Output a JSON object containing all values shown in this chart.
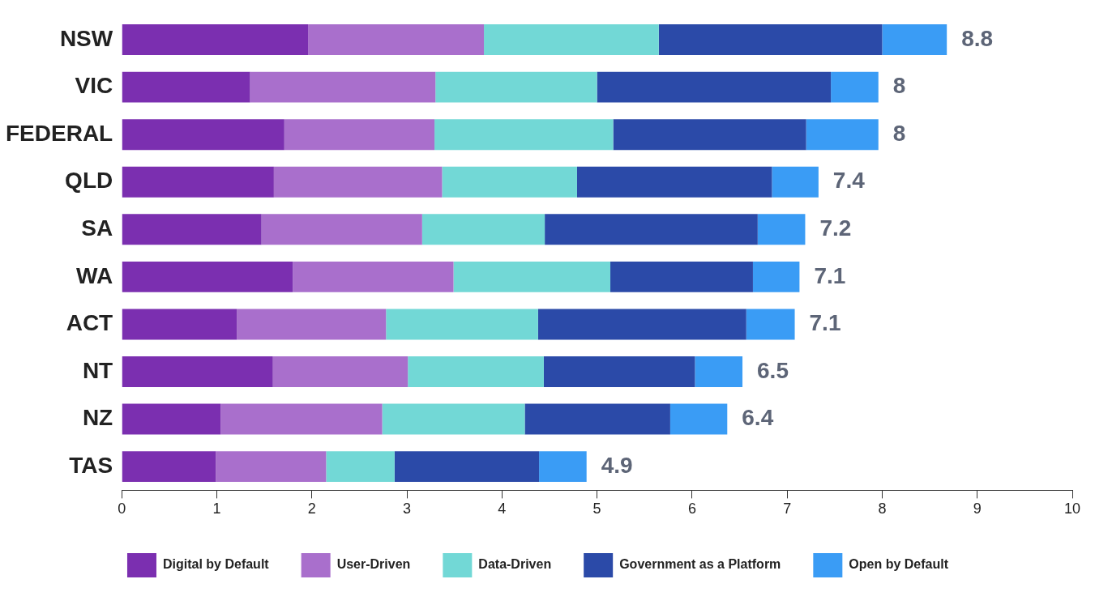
{
  "chart_data": {
    "type": "bar",
    "orientation": "horizontal",
    "stacked": true,
    "grid": false,
    "legend": "bottom",
    "categories": [
      "NSW",
      "VIC",
      "FEDERAL",
      "QLD",
      "SA",
      "WA",
      "ACT",
      "NT",
      "NZ",
      "TAS"
    ],
    "xlim": [
      0,
      10
    ],
    "xticks": [
      0,
      1,
      2,
      3,
      4,
      5,
      6,
      7,
      8,
      9,
      10
    ],
    "series": [
      {
        "name": "Digital by Default",
        "color": "#7b2fb0",
        "values": [
          1.96,
          1.35,
          1.71,
          1.6,
          1.47,
          1.8,
          1.21,
          1.59,
          1.04,
          0.99
        ]
      },
      {
        "name": "User-Driven",
        "color": "#a96fcc",
        "values": [
          1.85,
          1.95,
          1.58,
          1.77,
          1.69,
          1.69,
          1.57,
          1.42,
          1.7,
          1.16
        ]
      },
      {
        "name": "Data-Driven",
        "color": "#72d8d6",
        "values": [
          1.84,
          1.7,
          1.88,
          1.42,
          1.29,
          1.65,
          1.6,
          1.43,
          1.5,
          0.72
        ]
      },
      {
        "name": "Government as a Platform",
        "color": "#2b4aa8",
        "values": [
          2.35,
          2.46,
          2.03,
          2.05,
          2.24,
          1.5,
          2.19,
          1.59,
          1.53,
          1.52
        ]
      },
      {
        "name": "Open by Default",
        "color": "#3a9cf5",
        "values": [
          0.68,
          0.5,
          0.76,
          0.49,
          0.5,
          0.49,
          0.51,
          0.5,
          0.6,
          0.5
        ]
      }
    ],
    "totals": [
      "8.8",
      "8",
      "8",
      "7.4",
      "7.2",
      "7.1",
      "7.1",
      "6.5",
      "6.4",
      "4.9"
    ]
  }
}
